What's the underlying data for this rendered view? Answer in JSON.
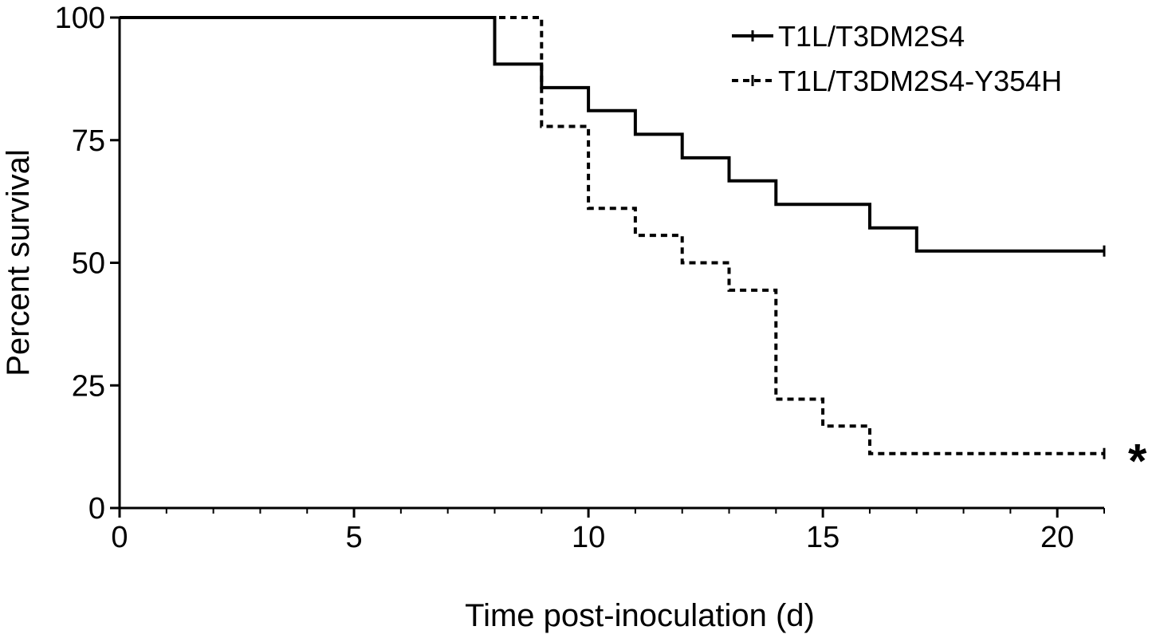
{
  "chart_data": {
    "type": "line",
    "subtype": "kaplan-meier step",
    "title": "",
    "xlabel": "Time post-inoculation (d)",
    "ylabel": "Percent survival",
    "xlim": [
      0,
      21
    ],
    "ylim": [
      0,
      100
    ],
    "xticks": [
      0,
      5,
      10,
      15,
      20
    ],
    "yticks": [
      0,
      25,
      50,
      75,
      100
    ],
    "grid": false,
    "legend_position": "top-right",
    "annotation": "*",
    "series": [
      {
        "name": "T1L/T3DM2S4",
        "line_style": "solid",
        "color": "#000000",
        "points": [
          [
            0,
            100
          ],
          [
            8,
            100
          ],
          [
            8,
            90.5
          ],
          [
            9,
            90.5
          ],
          [
            9,
            85.7
          ],
          [
            10,
            85.7
          ],
          [
            10,
            81
          ],
          [
            11,
            81
          ],
          [
            11,
            76.2
          ],
          [
            12,
            76.2
          ],
          [
            12,
            71.4
          ],
          [
            13,
            71.4
          ],
          [
            13,
            66.7
          ],
          [
            14,
            66.7
          ],
          [
            14,
            61.9
          ],
          [
            16,
            61.9
          ],
          [
            16,
            57.1
          ],
          [
            17,
            57.1
          ],
          [
            17,
            52.4
          ],
          [
            21,
            52.4
          ]
        ],
        "censor_marks": [
          [
            21,
            52.4
          ]
        ]
      },
      {
        "name": "T1L/T3DM2S4-Y354H",
        "line_style": "dashed",
        "color": "#000000",
        "points": [
          [
            0,
            100
          ],
          [
            9,
            100
          ],
          [
            9,
            77.8
          ],
          [
            10,
            77.8
          ],
          [
            10,
            61.1
          ],
          [
            11,
            61.1
          ],
          [
            11,
            55.6
          ],
          [
            12,
            55.6
          ],
          [
            12,
            50
          ],
          [
            13,
            50
          ],
          [
            13,
            44.4
          ],
          [
            14,
            44.4
          ],
          [
            14,
            22.2
          ],
          [
            15,
            22.2
          ],
          [
            15,
            16.7
          ],
          [
            16,
            16.7
          ],
          [
            16,
            11.1
          ],
          [
            21,
            11.1
          ]
        ],
        "censor_marks": [
          [
            21,
            11.1
          ]
        ]
      }
    ]
  }
}
